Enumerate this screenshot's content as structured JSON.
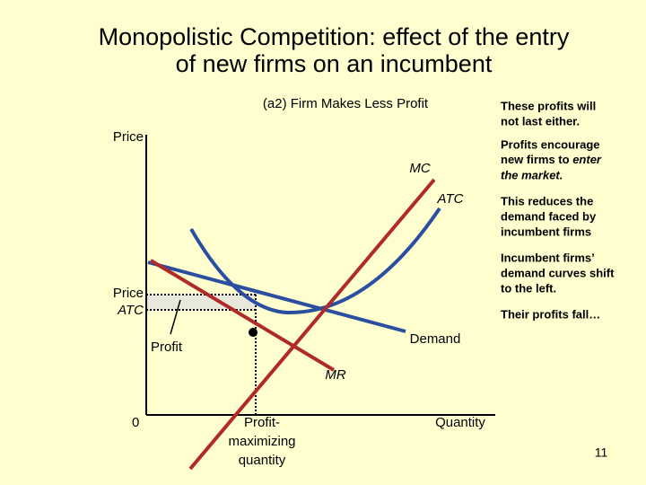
{
  "title": [
    "Monopolistic Competition: effect of the entry",
    "of new firms on an incumbent"
  ],
  "subtitle": "(a2) Firm Makes Less Profit",
  "axis": {
    "y": "Price",
    "x": "Quantity",
    "origin": "0"
  },
  "labels": {
    "price": "Price",
    "atc": "ATC",
    "profit": "Profit",
    "mc": "MC",
    "atc_curve": "ATC",
    "demand": "Demand",
    "mr": "MR",
    "quantity": [
      "Profit-",
      "maximizing",
      "quantity"
    ]
  },
  "notes": [
    [
      "These profits will",
      "not last either."
    ],
    [
      "Profits encourage",
      "new firms to ",
      "enter",
      "the market."
    ],
    [
      "This reduces the",
      "demand faced by",
      "incumbent firms"
    ],
    [
      "Incumbent firms’",
      "demand curves shift",
      "to the left."
    ],
    [
      "Their profits fall…"
    ]
  ],
  "page_number": "11"
}
